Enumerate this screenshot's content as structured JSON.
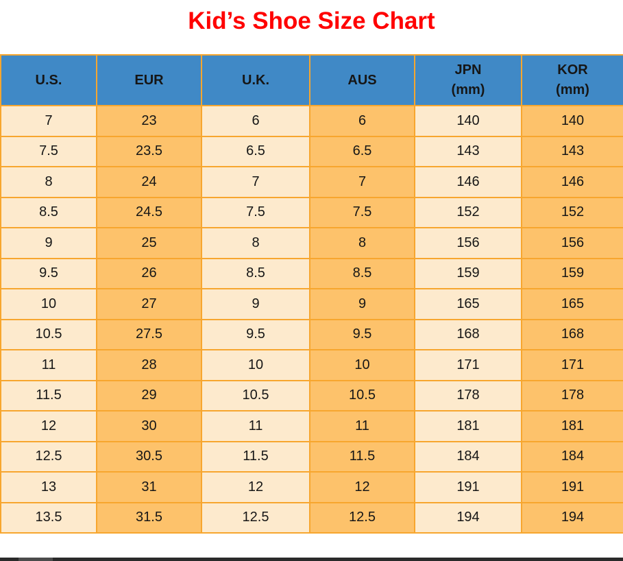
{
  "title": "Kid’s Shoe Size Chart",
  "colors": {
    "title-red": "#ff0000",
    "header-blue": "#4089c6",
    "cell-cream": "#fdeacd",
    "cell-orange": "#fdc26b",
    "grid-orange": "#f7a62e",
    "text-black": "#161616",
    "scrollbar-track": "#2a2a2a",
    "scrollbar-thumb": "#4b4b4b",
    "page-bg": "#ffffff"
  },
  "chart_data": {
    "type": "table",
    "title": "Kid’s Shoe Size Chart",
    "columns": [
      {
        "line1": "U.S.",
        "line2": ""
      },
      {
        "line1": "EUR",
        "line2": ""
      },
      {
        "line1": "U.K.",
        "line2": ""
      },
      {
        "line1": "AUS",
        "line2": ""
      },
      {
        "line1": "JPN",
        "line2": "(mm)"
      },
      {
        "line1": "KOR",
        "line2": "(mm)"
      }
    ],
    "rows": [
      [
        "7",
        "23",
        "6",
        "6",
        "140",
        "140"
      ],
      [
        "7.5",
        "23.5",
        "6.5",
        "6.5",
        "143",
        "143"
      ],
      [
        "8",
        "24",
        "7",
        "7",
        "146",
        "146"
      ],
      [
        "8.5",
        "24.5",
        "7.5",
        "7.5",
        "152",
        "152"
      ],
      [
        "9",
        "25",
        "8",
        "8",
        "156",
        "156"
      ],
      [
        "9.5",
        "26",
        "8.5",
        "8.5",
        "159",
        "159"
      ],
      [
        "10",
        "27",
        "9",
        "9",
        "165",
        "165"
      ],
      [
        "10.5",
        "27.5",
        "9.5",
        "9.5",
        "168",
        "168"
      ],
      [
        "11",
        "28",
        "10",
        "10",
        "171",
        "171"
      ],
      [
        "11.5",
        "29",
        "10.5",
        "10.5",
        "178",
        "178"
      ],
      [
        "12",
        "30",
        "11",
        "11",
        "181",
        "181"
      ],
      [
        "12.5",
        "30.5",
        "11.5",
        "11.5",
        "184",
        "184"
      ],
      [
        "13",
        "31",
        "12",
        "12",
        "191",
        "191"
      ],
      [
        "13.5",
        "31.5",
        "12.5",
        "12.5",
        "194",
        "194"
      ]
    ]
  }
}
